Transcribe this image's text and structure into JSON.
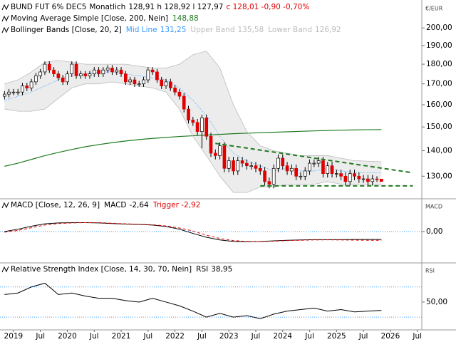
{
  "chart_data": [
    {
      "type": "candlestick",
      "log": true,
      "header": {
        "name": "BUND FUT 6% DEC5",
        "period": "Monatlich",
        "values": "128,91 h 128,92 l 127,97",
        "change": "c 128,01 -0,90 -0,70%",
        "change_color": "#e00000"
      },
      "axis_label": "€/EUR",
      "ylim": [
        122,
        216
      ],
      "yticks": [
        {
          "value": 130,
          "label": "130,00"
        },
        {
          "value": 140,
          "label": "140,00"
        },
        {
          "value": 150,
          "label": "150,00"
        },
        {
          "value": 160,
          "label": "160,00"
        },
        {
          "value": 170,
          "label": "170,00"
        },
        {
          "value": 180,
          "label": "180,00"
        },
        {
          "value": 190,
          "label": "190,00"
        },
        {
          "value": 200,
          "label": "200,00"
        }
      ],
      "xlim": [
        "2018-10",
        "2026-08"
      ],
      "xticks": [
        {
          "value": "2019-01",
          "label": "2019"
        },
        {
          "value": "2019-07",
          "label": "Jul"
        },
        {
          "value": "2020-01",
          "label": "2020"
        },
        {
          "value": "2020-07",
          "label": "Jul"
        },
        {
          "value": "2021-01",
          "label": "2021"
        },
        {
          "value": "2021-07",
          "label": "Jul"
        },
        {
          "value": "2022-01",
          "label": "2022"
        },
        {
          "value": "2022-07",
          "label": "Jul"
        },
        {
          "value": "2023-01",
          "label": "2023"
        },
        {
          "value": "2023-07",
          "label": "Jul"
        },
        {
          "value": "2024-01",
          "label": "2024"
        },
        {
          "value": "2024-07",
          "label": "Jul"
        },
        {
          "value": "2025-01",
          "label": "2025"
        },
        {
          "value": "2025-07",
          "label": "Jul"
        },
        {
          "value": "2026-01",
          "label": "2026"
        },
        {
          "value": "2026-07",
          "label": "Jul"
        }
      ],
      "up_color": "#ffffff",
      "down_color": "#e00000",
      "candles": {
        "x": [
          "2018-11",
          "2018-12",
          "2019-01",
          "2019-02",
          "2019-03",
          "2019-04",
          "2019-05",
          "2019-06",
          "2019-07",
          "2019-08",
          "2019-09",
          "2019-10",
          "2019-11",
          "2019-12",
          "2020-01",
          "2020-02",
          "2020-03",
          "2020-04",
          "2020-05",
          "2020-06",
          "2020-07",
          "2020-08",
          "2020-09",
          "2020-10",
          "2020-11",
          "2020-12",
          "2021-01",
          "2021-02",
          "2021-03",
          "2021-04",
          "2021-05",
          "2021-06",
          "2021-07",
          "2021-08",
          "2021-09",
          "2021-10",
          "2021-11",
          "2021-12",
          "2022-01",
          "2022-02",
          "2022-03",
          "2022-04",
          "2022-05",
          "2022-06",
          "2022-07",
          "2022-08",
          "2022-09",
          "2022-10",
          "2022-11",
          "2022-12",
          "2023-01",
          "2023-02",
          "2023-03",
          "2023-04",
          "2023-05",
          "2023-06",
          "2023-07",
          "2023-08",
          "2023-09",
          "2023-10",
          "2023-11",
          "2023-12",
          "2024-01",
          "2024-02",
          "2024-03",
          "2024-04",
          "2024-05",
          "2024-06",
          "2024-07",
          "2024-08",
          "2024-09",
          "2024-10",
          "2024-11",
          "2024-12",
          "2025-01",
          "2025-02",
          "2025-03",
          "2025-04",
          "2025-05",
          "2025-06",
          "2025-07",
          "2025-08",
          "2025-09",
          "2025-10",
          "2025-11"
        ],
        "open": [
          164,
          165,
          166,
          166,
          166,
          169,
          168,
          171,
          174,
          176,
          180,
          177,
          175,
          173,
          171,
          175,
          180,
          174,
          175,
          174,
          175,
          177,
          175,
          177,
          178,
          176,
          177,
          175,
          171,
          172,
          170,
          170,
          172,
          177,
          176,
          172,
          169,
          171,
          168,
          166,
          164,
          158,
          153,
          152,
          148,
          154,
          146,
          139,
          138,
          142,
          133,
          136,
          132,
          136,
          135,
          134,
          134,
          133,
          132,
          128,
          127,
          133,
          137,
          134,
          132,
          133,
          130,
          130,
          132,
          135,
          135,
          136,
          131,
          134,
          131,
          131,
          130,
          128,
          131,
          130,
          129,
          129,
          128,
          129,
          128.91
        ],
        "high": [
          166.5,
          167.5,
          167.5,
          167.5,
          170.5,
          170.5,
          172.5,
          175.5,
          177.5,
          181.5,
          181.5,
          178.5,
          176.5,
          174.5,
          176.5,
          181.5,
          181.5,
          176.5,
          176.5,
          176.5,
          178.5,
          178.5,
          178.5,
          179.5,
          179.5,
          178.5,
          178.5,
          176.5,
          173.5,
          173.5,
          171.5,
          173.5,
          178.5,
          178.5,
          177.5,
          173.5,
          172.5,
          172.5,
          169.5,
          167.5,
          165.5,
          159.5,
          154.5,
          153.5,
          155.5,
          155.5,
          147.5,
          140.5,
          143.5,
          143.5,
          137.5,
          137.5,
          137.5,
          137.5,
          136.5,
          135.5,
          135.5,
          134.5,
          133.5,
          129.5,
          134.5,
          138.5,
          138.5,
          135.5,
          134.5,
          134.5,
          131.5,
          133.5,
          136.5,
          136.5,
          137.5,
          137.5,
          135.5,
          135.5,
          132.5,
          132.5,
          131.5,
          132.5,
          132.5,
          131.5,
          130.5,
          130.5,
          130.5,
          130,
          128.92
        ],
        "low": [
          162.5,
          163.5,
          164.5,
          164.5,
          164.5,
          166.5,
          166.5,
          169.5,
          172.5,
          174.5,
          175.5,
          173.5,
          171.5,
          169.5,
          169.5,
          173.5,
          172.5,
          172.5,
          172.5,
          172.5,
          173.5,
          173.5,
          173.5,
          175.5,
          174.5,
          174.5,
          173.5,
          169.5,
          169.5,
          168.5,
          168.5,
          168.5,
          170.5,
          174.5,
          170.5,
          167.5,
          167.5,
          166.5,
          164.5,
          162.5,
          156.5,
          151.5,
          150.5,
          146.5,
          141,
          144.5,
          137.5,
          136.5,
          136.5,
          131.5,
          131.5,
          130.5,
          130.5,
          133.5,
          132.5,
          132.5,
          131.5,
          130.5,
          126.5,
          125.5,
          125.5,
          131.5,
          132.5,
          130.5,
          130.5,
          128.5,
          128.5,
          128.5,
          130.5,
          133.5,
          133.5,
          129.5,
          129.5,
          129.5,
          129.5,
          128.5,
          126.5,
          126.5,
          128.5,
          127.5,
          127.5,
          126.5,
          126.5,
          127.9,
          127.97
        ],
        "close": [
          165,
          166,
          166,
          166,
          169,
          168,
          171,
          174,
          176,
          180,
          177,
          175,
          173,
          171,
          175,
          180,
          174,
          175,
          174,
          175,
          177,
          175,
          177,
          178,
          176,
          177,
          175,
          171,
          172,
          170,
          170,
          172,
          177,
          176,
          172,
          169,
          171,
          168,
          166,
          164,
          158,
          153,
          152,
          148,
          154,
          146,
          139,
          138,
          142,
          133,
          136,
          132,
          136,
          135,
          134,
          134,
          133,
          132,
          128,
          127,
          133,
          137,
          134,
          132,
          133,
          130,
          130,
          132,
          135,
          135,
          136,
          131,
          134,
          131,
          131,
          130,
          128,
          131,
          130,
          129,
          129,
          128,
          129,
          128.91,
          128.01
        ]
      },
      "indicator_x": [
        "2018-11",
        "2019-02",
        "2019-05",
        "2019-08",
        "2019-11",
        "2020-02",
        "2020-05",
        "2020-08",
        "2020-11",
        "2021-02",
        "2021-05",
        "2021-08",
        "2021-11",
        "2022-02",
        "2022-05",
        "2022-08",
        "2022-11",
        "2023-02",
        "2023-05",
        "2023-08",
        "2023-11",
        "2024-02",
        "2024-05",
        "2024-08",
        "2024-11",
        "2025-02",
        "2025-05",
        "2025-08",
        "2025-11"
      ],
      "bollinger_title": "Bollinger Bands [Close, 20, 2]",
      "band_color": "#ececec",
      "series": [
        {
          "name": "Moving Average Simple [Close, 200, Nein]",
          "color": "#1f7a1f",
          "value_label": "148,88",
          "values": [
            133.8,
            135,
            136.5,
            138,
            139.3,
            140.5,
            141.6,
            142.5,
            143.3,
            144,
            144.6,
            145.1,
            145.5,
            145.9,
            146.2,
            146.5,
            146.8,
            147.1,
            147.3,
            147.5,
            147.7,
            147.9,
            148.1,
            148.3,
            148.45,
            148.6,
            148.7,
            148.8,
            148.88
          ]
        },
        {
          "name": "Mid Line",
          "color": "#3399ff",
          "value_label": "131,25",
          "values": [
            162,
            164,
            166,
            169,
            172,
            174,
            175,
            176,
            176,
            175,
            174,
            173,
            172,
            168,
            162,
            155,
            146,
            139,
            136,
            134,
            132,
            133,
            132,
            132,
            133,
            132,
            131.5,
            131.3,
            131.25
          ]
        },
        {
          "name": "Upper Band",
          "color": "#bbbbbb",
          "value_label": "135,58",
          "values": [
            170,
            172,
            176,
            181,
            182,
            181,
            180,
            180,
            180,
            180,
            179,
            178,
            178,
            180,
            185,
            187,
            178,
            160,
            148,
            142,
            140,
            139,
            138,
            138,
            138,
            137,
            136,
            135.8,
            135.58
          ]
        },
        {
          "name": "Lower Band",
          "color": "#bbbbbb",
          "value_label": "126,92",
          "values": [
            158,
            157,
            157,
            158,
            163,
            168,
            170,
            170,
            171,
            170,
            169,
            168,
            166,
            158,
            146,
            138,
            130,
            124,
            124,
            126,
            126,
            127,
            127,
            127,
            128,
            127,
            127,
            127,
            126.92
          ]
        }
      ],
      "trendlines": [
        {
          "color": "#1f7a1f",
          "x": [
            "2022-10",
            "2026-06"
          ],
          "values": [
            143,
            131.3
          ]
        },
        {
          "color": "#1f7a1f",
          "x": [
            "2023-08",
            "2026-06"
          ],
          "values": [
            126.4,
            126.4
          ]
        }
      ]
    },
    {
      "type": "line",
      "title": "MACD [Close, 12, 26, 9]",
      "axis_label": "MACD",
      "ylim": [
        -10,
        10.5
      ],
      "yticks": [
        {
          "value": 0,
          "label": "0,00"
        }
      ],
      "grid": true,
      "grid_color": "#3399ff",
      "x": [
        "2018-11",
        "2019-02",
        "2019-05",
        "2019-08",
        "2019-11",
        "2020-02",
        "2020-05",
        "2020-08",
        "2020-11",
        "2021-02",
        "2021-05",
        "2021-08",
        "2021-11",
        "2022-02",
        "2022-05",
        "2022-08",
        "2022-11",
        "2023-02",
        "2023-05",
        "2023-08",
        "2023-11",
        "2024-02",
        "2024-05",
        "2024-08",
        "2024-11",
        "2025-02",
        "2025-05",
        "2025-08",
        "2025-11"
      ],
      "series": [
        {
          "name": "MACD",
          "color": "#000000",
          "value_label": "-2,64",
          "values": [
            0,
            0.8,
            1.8,
            2.6,
            2.9,
            3,
            3,
            2.9,
            2.7,
            2.5,
            2.4,
            2.2,
            1.7,
            0.8,
            -0.6,
            -1.9,
            -2.8,
            -3.3,
            -3.4,
            -3.3,
            -3.1,
            -2.9,
            -2.8,
            -2.7,
            -2.7,
            -2.7,
            -2.65,
            -2.64,
            -2.64
          ]
        },
        {
          "name": "Trigger",
          "color": "#e00000",
          "dashed": true,
          "value_label": "-2,92",
          "values": [
            -0.2,
            0.4,
            1.3,
            2.2,
            2.7,
            2.9,
            3,
            3,
            2.8,
            2.6,
            2.45,
            2.3,
            1.9,
            1.2,
            0.2,
            -1.2,
            -2.3,
            -3,
            -3.3,
            -3.35,
            -3.2,
            -3,
            -2.9,
            -2.8,
            -2.75,
            -2.8,
            -2.85,
            -2.9,
            -2.92
          ]
        }
      ]
    },
    {
      "type": "line",
      "title": "Relative Strength Index [Close, 14, 30, 70, Nein]",
      "axis_label": "RSI",
      "ylim": [
        15,
        100
      ],
      "yticks": [
        {
          "value": 50,
          "label": "50,00"
        }
      ],
      "grid": false,
      "levels": [
        30,
        70
      ],
      "grid_color": "#3399ff",
      "x": [
        "2018-11",
        "2019-02",
        "2019-05",
        "2019-08",
        "2019-11",
        "2020-02",
        "2020-05",
        "2020-08",
        "2020-11",
        "2021-02",
        "2021-05",
        "2021-08",
        "2021-11",
        "2022-02",
        "2022-05",
        "2022-08",
        "2022-11",
        "2023-02",
        "2023-05",
        "2023-08",
        "2023-11",
        "2024-02",
        "2024-05",
        "2024-08",
        "2024-11",
        "2025-02",
        "2025-05",
        "2025-08",
        "2025-11"
      ],
      "series": [
        {
          "name": "RSI",
          "color": "#000000",
          "value_label": "38,95",
          "values": [
            60,
            62,
            70,
            75,
            60,
            62,
            58,
            55,
            55,
            52,
            50,
            55,
            50,
            45,
            38,
            30,
            35,
            30,
            32,
            28,
            34,
            38,
            40,
            42,
            38,
            40,
            37,
            38,
            38.95
          ]
        }
      ]
    }
  ]
}
